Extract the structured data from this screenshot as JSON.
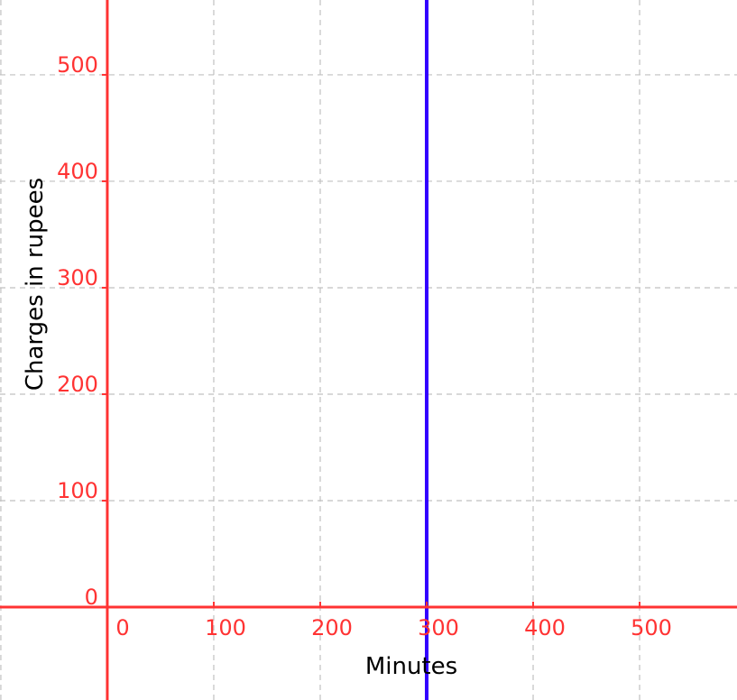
{
  "chart_data": {
    "type": "line",
    "title": "",
    "xlabel": "Minutes",
    "ylabel": "Charges in rupees",
    "xlim": [
      -100.8,
      591.5
    ],
    "ylim": [
      -87.3,
      570.3
    ],
    "x_ticks": [
      0,
      100,
      200,
      300,
      400,
      500
    ],
    "x_tick_labels": [
      "0",
      "100",
      "200",
      "300",
      "400",
      "500"
    ],
    "y_ticks": [
      0,
      100,
      200,
      300,
      400,
      500
    ],
    "y_tick_labels": [
      "0",
      "100",
      "200",
      "300",
      "400",
      "500"
    ],
    "grid": true,
    "grid_x": [
      -100,
      100,
      200,
      300,
      400,
      500
    ],
    "grid_y": [
      100,
      200,
      300,
      400,
      500
    ],
    "series": [
      {
        "kind": "vertical-line",
        "x": 300,
        "color": "#3300ff"
      }
    ],
    "colors": {
      "axis": "#ff3333",
      "grid": "#c0c0c0",
      "label": "#000000"
    }
  }
}
